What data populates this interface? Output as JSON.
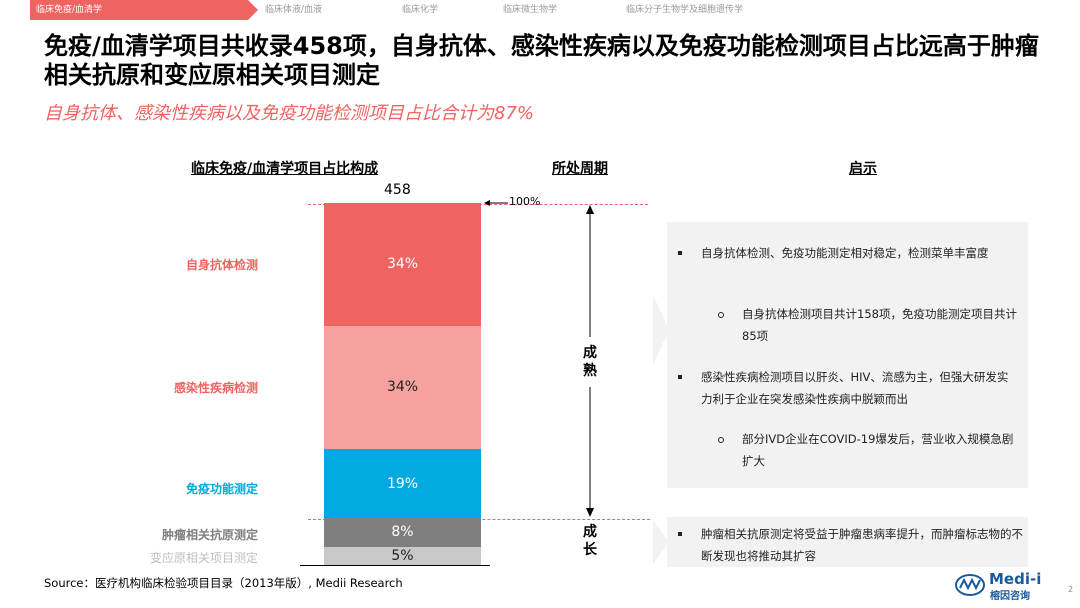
{
  "nav": {
    "tabs": [
      {
        "label": "临床免疫/血清学",
        "active": true
      },
      {
        "label": "临床体液/血液",
        "active": false
      },
      {
        "label": "临床化学",
        "active": false
      },
      {
        "label": "临床微生物学",
        "active": false
      },
      {
        "label": "临床分子生物学及细胞遗传学",
        "active": false
      }
    ]
  },
  "title": "免疫/血清学项目共收录458项，自身抗体、感染性疾病以及免疫功能检测项目占比远高于肿瘤相关抗原和变应原相关项目测定",
  "subtitle": "自身抗体、感染性疾病以及免疫功能检测项目占比合计为87%",
  "columns": {
    "chart": "临床免疫/血清学项目占比构成",
    "period": "所处周期",
    "insight": "启示"
  },
  "chart_data": {
    "type": "bar",
    "total_label": "458",
    "marker_label": "100%",
    "categories": [
      "自身抗体检测",
      "感染性疾病检测",
      "免疫功能测定",
      "肿瘤相关抗原测定",
      "变应原相关项目测定"
    ],
    "values": [
      34,
      34,
      19,
      8,
      5
    ],
    "value_labels": [
      "34%",
      "34%",
      "19%",
      "8%",
      "5%"
    ],
    "colors": [
      "#ef6461",
      "#f7a19e",
      "#00a9e0",
      "#7f7f7f",
      "#c8c8c8"
    ],
    "label_colors": [
      "#ef6461",
      "#ef6461",
      "#00a9e0",
      "#7f7f7f",
      "#bfbfbf"
    ]
  },
  "periods": {
    "mature": "成熟",
    "growth": "成长"
  },
  "insights": {
    "mature_items": [
      {
        "type": "bullet",
        "text": "自身抗体检测、免疫功能测定相对稳定，检测菜单丰富度"
      },
      {
        "type": "sub",
        "text": "自身抗体检测项目共计158项，免疫功能测定项目共计85项"
      },
      {
        "type": "bullet",
        "text": "感染性疾病检测项目以肝炎、HIV、流感为主，但强大研发实力利于企业在突发感染性疾病中脱颖而出"
      },
      {
        "type": "sub",
        "text": "部分IVD企业在COVID-19爆发后，营业收入规模急剧扩大"
      }
    ],
    "growth_items": [
      {
        "type": "bullet",
        "text": "肿瘤相关抗原测定将受益于肿瘤患病率提升，而肿瘤标志物的不断发现也将推动其扩容"
      }
    ]
  },
  "source": "Source：医疗机构临床检验项目目录（2013年版）, Medii Research",
  "logo": {
    "name": "Medi-i",
    "sub": "榕因咨询"
  },
  "page_number": "2"
}
